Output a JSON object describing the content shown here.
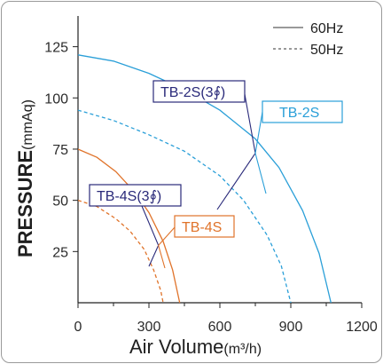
{
  "chart_data": {
    "type": "line",
    "title": "",
    "xlabel": "Air Volume",
    "xunit": "(m³/h)",
    "ylabel": "PRESSURE",
    "yunit": "(mmAq)",
    "xlim": [
      0,
      1200
    ],
    "ylim": [
      0,
      140
    ],
    "xticks": [
      0,
      300,
      600,
      900,
      1200
    ],
    "xtick_labels": [
      "0",
      "300",
      "600",
      "900",
      "1200"
    ],
    "yticks": [
      25,
      50,
      75,
      100,
      125
    ],
    "ytick_labels": [
      "25",
      "50",
      "75",
      "100",
      "125"
    ],
    "grid": false,
    "legend": {
      "placement": "top-right",
      "entries": [
        {
          "label": "60Hz",
          "style": "solid"
        },
        {
          "label": "50Hz",
          "style": "dashed"
        }
      ]
    },
    "series": [
      {
        "name": "60Hz",
        "model": "TB-2S",
        "style": "solid",
        "color": "#2a9fd8",
        "x": [
          0,
          150,
          300,
          450,
          600,
          750,
          850,
          950,
          1020,
          1070
        ],
        "y": [
          121,
          118,
          112,
          104,
          94,
          80,
          66,
          45,
          24,
          0
        ]
      },
      {
        "name": "50Hz",
        "model": "TB-2S",
        "style": "dashed",
        "color": "#2a9fd8",
        "x": [
          0,
          150,
          300,
          450,
          600,
          700,
          800,
          860,
          900
        ],
        "y": [
          94,
          89,
          82,
          74,
          62,
          50,
          33,
          18,
          0
        ]
      },
      {
        "name": "60Hz",
        "model": "TB-4S",
        "style": "solid",
        "color": "#e0732a",
        "x": [
          0,
          80,
          160,
          240,
          300,
          360,
          400,
          430
        ],
        "y": [
          75,
          71,
          64,
          54,
          44,
          30,
          16,
          0
        ]
      },
      {
        "name": "50Hz",
        "model": "TB-4S",
        "style": "dashed",
        "color": "#e0732a",
        "x": [
          0,
          80,
          160,
          220,
          280,
          320,
          350,
          360
        ],
        "y": [
          50,
          47,
          41,
          35,
          26,
          16,
          6,
          0
        ]
      }
    ],
    "annotations": [
      {
        "text": "TB-2S(3∮)",
        "color": "#2a2a7a",
        "border": "#2a2a7a"
      },
      {
        "text": "TB-2S",
        "color": "#2a9fd8",
        "border": "#2a9fd8"
      },
      {
        "text": "TB-4S(3∮)",
        "color": "#2a2a7a",
        "border": "#2a2a7a"
      },
      {
        "text": "TB-4S",
        "color": "#e0732a",
        "border": "#e0732a"
      }
    ]
  }
}
